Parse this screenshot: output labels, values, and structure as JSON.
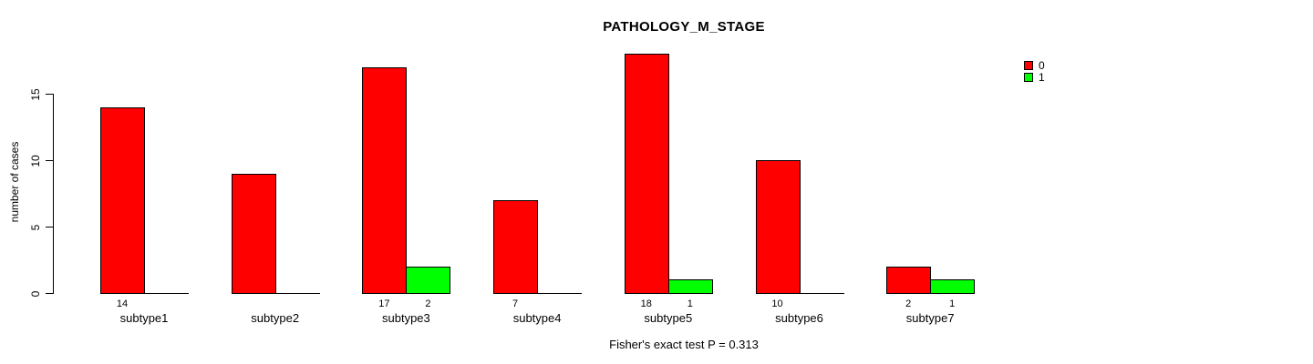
{
  "title": "PATHOLOGY_M_STAGE",
  "footer": "Fisher's exact test P = 0.313",
  "chart_data": {
    "type": "bar",
    "title": "PATHOLOGY_M_STAGE",
    "xlabel": "",
    "ylabel": "number of cases",
    "categories": [
      "subtype1",
      "subtype2",
      "subtype3",
      "subtype4",
      "subtype5",
      "subtype6",
      "subtype7"
    ],
    "series": [
      {
        "name": "0",
        "color": "#FF0000",
        "values": [
          14,
          9,
          17,
          7,
          18,
          10,
          2
        ]
      },
      {
        "name": "1",
        "color": "#00FF00",
        "values": [
          0,
          0,
          2,
          0,
          1,
          0,
          1
        ]
      }
    ],
    "value_labels": [
      [
        "14",
        "",
        "17",
        "7",
        "18",
        "10",
        "2"
      ],
      [
        "",
        "",
        "2",
        "",
        "1",
        "",
        "1"
      ]
    ],
    "yticks": [
      0,
      5,
      10,
      15
    ],
    "ylim": [
      0,
      18
    ],
    "grid": false,
    "legend_position": "top-right",
    "legend": [
      {
        "label": "0",
        "color": "#FF0000"
      },
      {
        "label": "1",
        "color": "#00FF00"
      }
    ],
    "annotation": "Fisher's exact test P = 0.313"
  }
}
